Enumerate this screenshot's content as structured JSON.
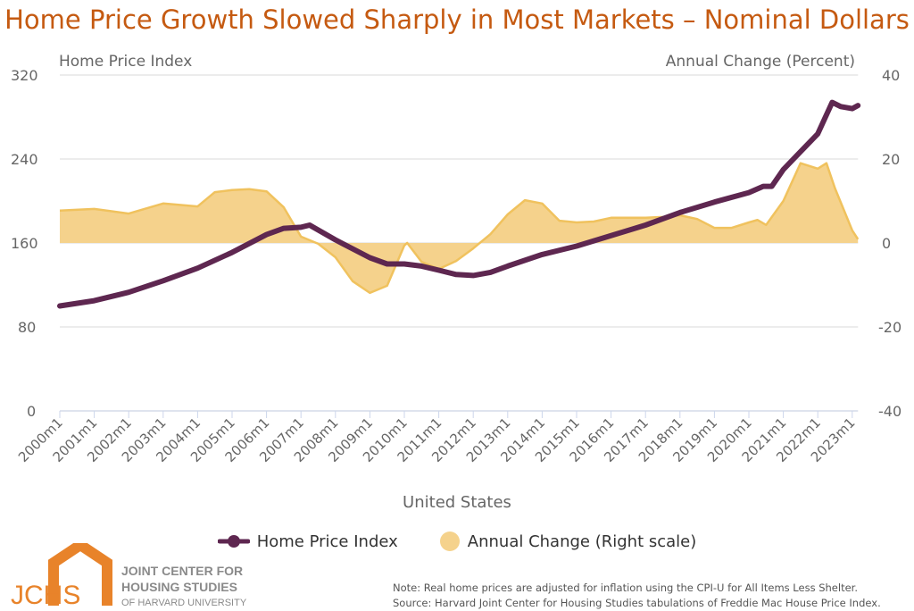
{
  "chart_data": {
    "type": "line+area",
    "title": "Home Price Growth Slowed Sharply in Most Markets – Nominal Dollars",
    "xlabel": "United States",
    "ylabel_left": "Home Price Index",
    "ylabel_right": "Annual Change (Percent)",
    "ylim_left": [
      0,
      320
    ],
    "ylim_right": [
      -40,
      40
    ],
    "yticks_left": [
      "0",
      "80",
      "160",
      "240",
      "320"
    ],
    "yticks_right": [
      "-40",
      "-20",
      "0",
      "20",
      "40"
    ],
    "xticks": [
      "2000m1",
      "2001m1",
      "2002m1",
      "2003m1",
      "2004m1",
      "2005m1",
      "2006m1",
      "2007m1",
      "2008m1",
      "2009m1",
      "2010m1",
      "2011m1",
      "2012m1",
      "2013m1",
      "2014m1",
      "2015m1",
      "2016m1",
      "2017m1",
      "2018m1",
      "2019m1",
      "2020m1",
      "2021m1",
      "2022m1",
      "2023m1"
    ],
    "grid": true,
    "legend_position": "bottom",
    "series": [
      {
        "name": "Home Price Index",
        "type": "line",
        "axis": "left",
        "color": "#5e2750",
        "points": [
          [
            "2000m1",
            100
          ],
          [
            "2001m1",
            105
          ],
          [
            "2002m1",
            113
          ],
          [
            "2003m1",
            124
          ],
          [
            "2004m1",
            136
          ],
          [
            "2005m1",
            151
          ],
          [
            "2006m1",
            168
          ],
          [
            "2006m7",
            174
          ],
          [
            "2007m1",
            175
          ],
          [
            "2007m4",
            177
          ],
          [
            "2008m1",
            163
          ],
          [
            "2009m1",
            146
          ],
          [
            "2009m7",
            140
          ],
          [
            "2010m1",
            140
          ],
          [
            "2010m7",
            138
          ],
          [
            "2011m1",
            134
          ],
          [
            "2011m7",
            130
          ],
          [
            "2012m1",
            129
          ],
          [
            "2012m7",
            132
          ],
          [
            "2013m1",
            138
          ],
          [
            "2014m1",
            149
          ],
          [
            "2015m1",
            157
          ],
          [
            "2016m1",
            167
          ],
          [
            "2017m1",
            177
          ],
          [
            "2018m1",
            189
          ],
          [
            "2019m1",
            199
          ],
          [
            "2020m1",
            208
          ],
          [
            "2020m6",
            214
          ],
          [
            "2020m9",
            214
          ],
          [
            "2021m1",
            230
          ],
          [
            "2022m1",
            264
          ],
          [
            "2022m6",
            294
          ],
          [
            "2022m9",
            290
          ],
          [
            "2023m1",
            288
          ],
          [
            "2023m3",
            291
          ]
        ]
      },
      {
        "name": "Annual Change (Right scale)",
        "type": "area",
        "axis": "right",
        "color": "#f5d28c",
        "points": [
          [
            "2000m1",
            7.7
          ],
          [
            "2001m1",
            8.1
          ],
          [
            "2002m1",
            7.0
          ],
          [
            "2003m1",
            9.4
          ],
          [
            "2004m1",
            8.7
          ],
          [
            "2004m7",
            12.1
          ],
          [
            "2005m1",
            12.6
          ],
          [
            "2005m7",
            12.8
          ],
          [
            "2006m1",
            12.3
          ],
          [
            "2006m7",
            8.5
          ],
          [
            "2007m1",
            1.5
          ],
          [
            "2007m7",
            -0.2
          ],
          [
            "2008m1",
            -3.4
          ],
          [
            "2008m7",
            -9.1
          ],
          [
            "2009m1",
            -11.9
          ],
          [
            "2009m7",
            -10.2
          ],
          [
            "2010m1",
            -0.6
          ],
          [
            "2010m2",
            0
          ],
          [
            "2010m7",
            -4.5
          ],
          [
            "2011m1",
            -6.2
          ],
          [
            "2011m7",
            -4.3
          ],
          [
            "2012m1",
            -1.3
          ],
          [
            "2012m7",
            2.1
          ],
          [
            "2013m1",
            6.8
          ],
          [
            "2013m7",
            10.2
          ],
          [
            "2014m1",
            9.4
          ],
          [
            "2014m7",
            5.3
          ],
          [
            "2015m1",
            4.9
          ],
          [
            "2015m7",
            5.1
          ],
          [
            "2016m1",
            6.0
          ],
          [
            "2017m1",
            6.0
          ],
          [
            "2017m7",
            6.2
          ],
          [
            "2018m1",
            6.6
          ],
          [
            "2018m7",
            5.7
          ],
          [
            "2019m1",
            3.6
          ],
          [
            "2019m7",
            3.6
          ],
          [
            "2020m1",
            4.9
          ],
          [
            "2020m4",
            5.5
          ],
          [
            "2020m7",
            4.3
          ],
          [
            "2021m1",
            10.0
          ],
          [
            "2021m7",
            19.0
          ],
          [
            "2022m1",
            17.7
          ],
          [
            "2022m4",
            19.0
          ],
          [
            "2022m7",
            13.0
          ],
          [
            "2023m1",
            3.0
          ],
          [
            "2023m3",
            0.9
          ]
        ]
      }
    ]
  },
  "legend": {
    "hpi": "Home Price Index",
    "change": "Annual Change (Right scale)"
  },
  "logo": {
    "abbr": "JCHS",
    "line1": "JOINT CENTER FOR",
    "line2": "HOUSING STUDIES",
    "line3": "OF HARVARD UNIVERSITY"
  },
  "note": "Note: Real home prices are adjusted for inflation using the CPI-U for All Items Less Shelter.",
  "source": "Source: Harvard Joint Center for Housing Studies tabulations of Freddie Mac House Price Index."
}
